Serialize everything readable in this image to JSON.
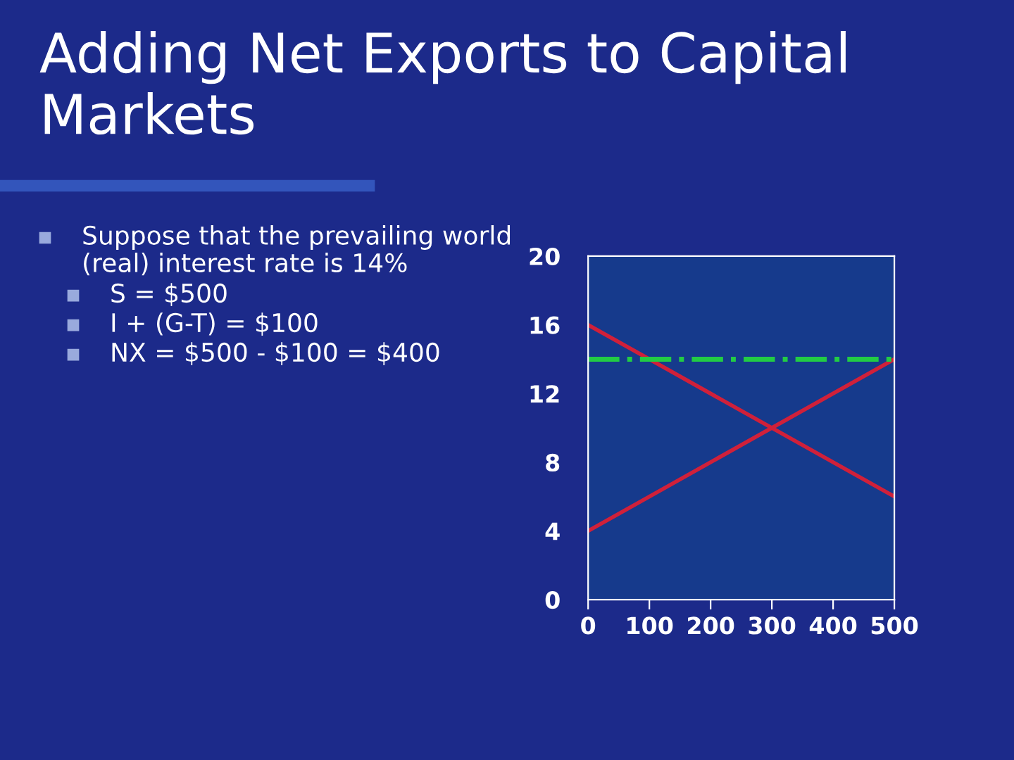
{
  "chart_data": {
    "type": "line",
    "title": "Adding Net Exports to Capital Markets",
    "annotations": [
      "Suppose that the prevailing world (real) interest rate is 14%",
      "S = $500",
      "I + (G-T) = $100",
      "NX = $500 - $100 = $400"
    ],
    "x": [
      0,
      500
    ],
    "series": [
      {
        "color": "#d0203a",
        "values": [
          16,
          6
        ]
      },
      {
        "color": "#d0203a",
        "values": [
          4,
          14
        ]
      }
    ],
    "ref_lines": [
      {
        "axis": "y",
        "value": 14,
        "label": null,
        "color": "#22cc44",
        "line_style": "dashed"
      }
    ],
    "xlim": [
      0,
      500
    ],
    "ylim": [
      0,
      20
    ],
    "xticks": [
      0,
      100,
      200,
      300,
      400,
      500
    ],
    "yticks": [
      0,
      4,
      8,
      12,
      16,
      20
    ],
    "grid": false,
    "marker": "none",
    "line_style": "solid"
  }
}
